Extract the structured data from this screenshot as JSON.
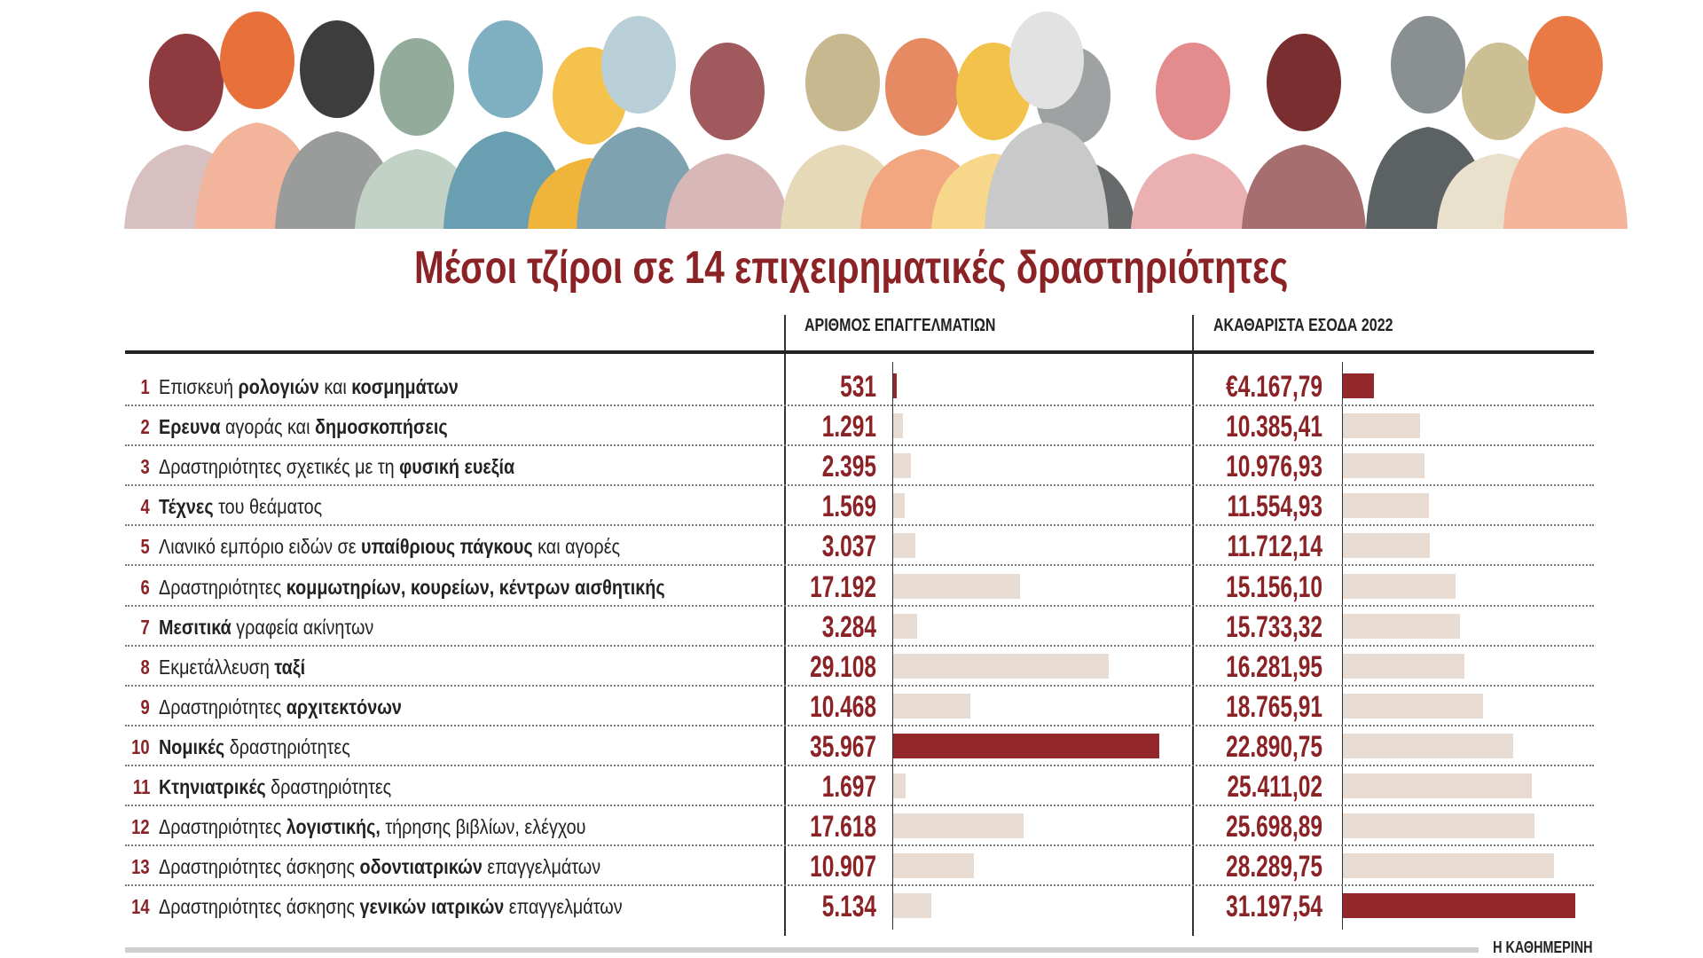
{
  "chart_data": {
    "type": "table",
    "title": "Μέσοι τζίροι σε 14 επιχειρηματικές δραστηριότητες",
    "columns": [
      "ΑΡΙΘΜΟΣ ΕΠΑΓΓΕΛΜΑΤΙΩΝ",
      "ΑΚΑΘΑΡΙΣΤΑ ΕΣΟΔΑ 2022"
    ],
    "highlight_color": "#93272a",
    "bar_color": "#e8dbd2",
    "rows": [
      {
        "rank": "1",
        "label": [
          {
            "t": "Επισκευή "
          },
          {
            "t": "ρολογιών",
            "b": true
          },
          {
            "t": " και "
          },
          {
            "t": "κοσμημάτων",
            "b": true
          }
        ],
        "count": 531,
        "count_text": "531",
        "revenue": 4167.79,
        "revenue_text": "€4.167,79",
        "count_hl": true,
        "revenue_hl": true
      },
      {
        "rank": "2",
        "label": [
          {
            "t": "Ερευνα",
            "b": true
          },
          {
            "t": " αγοράς και "
          },
          {
            "t": "δημοσκοπήσεις",
            "b": true
          }
        ],
        "count": 1291,
        "count_text": "1.291",
        "revenue": 10385.41,
        "revenue_text": "10.385,41"
      },
      {
        "rank": "3",
        "label": [
          {
            "t": "Δραστηριότητες σχετικές με τη "
          },
          {
            "t": "φυσική ευεξία",
            "b": true
          }
        ],
        "count": 2395,
        "count_text": "2.395",
        "revenue": 10976.93,
        "revenue_text": "10.976,93"
      },
      {
        "rank": "4",
        "label": [
          {
            "t": "Τέχνες",
            "b": true
          },
          {
            "t": " του θεάματος"
          }
        ],
        "count": 1569,
        "count_text": "1.569",
        "revenue": 11554.93,
        "revenue_text": "11.554,93"
      },
      {
        "rank": "5",
        "label": [
          {
            "t": "Λιανικό εμπόριο ειδών σε "
          },
          {
            "t": "υπαίθριους πάγκους",
            "b": true
          },
          {
            "t": " και αγορές"
          }
        ],
        "count": 3037,
        "count_text": "3.037",
        "revenue": 11712.14,
        "revenue_text": "11.712,14"
      },
      {
        "rank": "6",
        "label": [
          {
            "t": "Δραστηριότητες "
          },
          {
            "t": "κομμωτηρίων, κουρείων, κέντρων αισθητικής",
            "b": true
          }
        ],
        "count": 17192,
        "count_text": "17.192",
        "revenue": 15156.1,
        "revenue_text": "15.156,10"
      },
      {
        "rank": "7",
        "label": [
          {
            "t": "Μεσιτικά",
            "b": true
          },
          {
            "t": " γραφεία ακίνητων"
          }
        ],
        "count": 3284,
        "count_text": "3.284",
        "revenue": 15733.32,
        "revenue_text": "15.733,32"
      },
      {
        "rank": "8",
        "label": [
          {
            "t": "Εκμετάλλευση "
          },
          {
            "t": "ταξί",
            "b": true
          }
        ],
        "count": 29108,
        "count_text": "29.108",
        "revenue": 16281.95,
        "revenue_text": "16.281,95"
      },
      {
        "rank": "9",
        "label": [
          {
            "t": "Δραστηριότητες "
          },
          {
            "t": "αρχιτεκτόνων",
            "b": true
          }
        ],
        "count": 10468,
        "count_text": "10.468",
        "revenue": 18765.91,
        "revenue_text": "18.765,91"
      },
      {
        "rank": "10",
        "label": [
          {
            "t": "Νομικές",
            "b": true
          },
          {
            "t": " δραστηριότητες"
          }
        ],
        "count": 35967,
        "count_text": "35.967",
        "revenue": 22890.75,
        "revenue_text": "22.890,75",
        "count_hl": true
      },
      {
        "rank": "11",
        "label": [
          {
            "t": "Κτηνιατρικές",
            "b": true
          },
          {
            "t": " δραστηριότητες"
          }
        ],
        "count": 1697,
        "count_text": "1.697",
        "revenue": 25411.02,
        "revenue_text": "25.411,02"
      },
      {
        "rank": "12",
        "label": [
          {
            "t": "Δραστηριότητες "
          },
          {
            "t": "λογιστικής,",
            "b": true
          },
          {
            "t": " τήρησης βιβλίων, ελέγχου"
          }
        ],
        "count": 17618,
        "count_text": "17.618",
        "revenue": 25698.89,
        "revenue_text": "25.698,89"
      },
      {
        "rank": "13",
        "label": [
          {
            "t": "Δραστηριότητες άσκησης "
          },
          {
            "t": "οδοντιατρικών",
            "b": true
          },
          {
            "t": " επαγγελμάτων"
          }
        ],
        "count": 10907,
        "count_text": "10.907",
        "revenue": 28289.75,
        "revenue_text": "28.289,75"
      },
      {
        "rank": "14",
        "label": [
          {
            "t": "Δραστηριότητες άσκησης "
          },
          {
            "t": "γενικών ιατρικών",
            "b": true
          },
          {
            "t": " επαγγελμάτων"
          }
        ],
        "count": 5134,
        "count_text": "5.134",
        "revenue": 31197.54,
        "revenue_text": "31.197,54",
        "revenue_hl": true
      }
    ],
    "count_max": 35967,
    "revenue_max": 31197.54
  },
  "source": "Η ΚΑΘΗΜΕΡΙΝΗ"
}
